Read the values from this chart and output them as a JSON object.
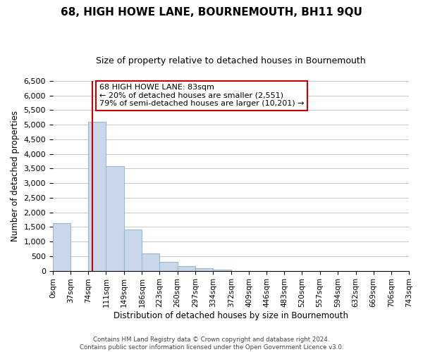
{
  "title": "68, HIGH HOWE LANE, BOURNEMOUTH, BH11 9QU",
  "subtitle": "Size of property relative to detached houses in Bournemouth",
  "xlabel": "Distribution of detached houses by size in Bournemouth",
  "ylabel": "Number of detached properties",
  "bar_color": "#c8d8ea",
  "bar_edge_color": "#9ab8cc",
  "property_line_x": 83,
  "property_line_color": "#cc0000",
  "bin_edges": [
    0,
    37,
    74,
    111,
    149,
    186,
    223,
    260,
    297,
    334,
    372,
    409,
    446,
    483,
    520,
    557,
    594,
    632,
    669,
    706,
    743
  ],
  "bin_labels": [
    "0sqm",
    "37sqm",
    "74sqm",
    "111sqm",
    "149sqm",
    "186sqm",
    "223sqm",
    "260sqm",
    "297sqm",
    "334sqm",
    "372sqm",
    "409sqm",
    "446sqm",
    "483sqm",
    "520sqm",
    "557sqm",
    "594sqm",
    "632sqm",
    "669sqm",
    "706sqm",
    "743sqm"
  ],
  "bar_heights": [
    1630,
    0,
    5100,
    3580,
    1420,
    590,
    300,
    150,
    80,
    50,
    0,
    0,
    0,
    0,
    0,
    0,
    0,
    0,
    0,
    0
  ],
  "ylim": [
    0,
    6500
  ],
  "yticks": [
    0,
    500,
    1000,
    1500,
    2000,
    2500,
    3000,
    3500,
    4000,
    4500,
    5000,
    5500,
    6000,
    6500
  ],
  "annotation_title": "68 HIGH HOWE LANE: 83sqm",
  "annotation_line1": "← 20% of detached houses are smaller (2,551)",
  "annotation_line2": "79% of semi-detached houses are larger (10,201) →",
  "footer_line1": "Contains HM Land Registry data © Crown copyright and database right 2024.",
  "footer_line2": "Contains public sector information licensed under the Open Government Licence v3.0.",
  "background_color": "#ffffff",
  "grid_color": "#c8c8c8"
}
